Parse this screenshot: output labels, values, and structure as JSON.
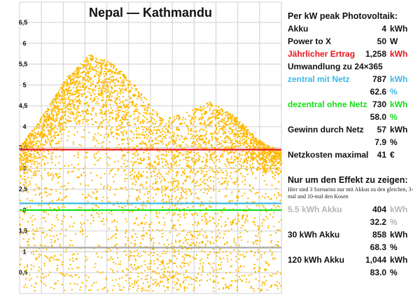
{
  "chart_data": {
    "type": "scatter",
    "title": "Nepal — Kathmandu",
    "xlabel": "",
    "ylabel": "",
    "ylim": [
      0,
      7
    ],
    "y_ticks": [
      "0,5",
      "1",
      "1,5",
      "2",
      "2,5",
      "3",
      "3,5",
      "4",
      "4,5",
      "5",
      "5,5",
      "6",
      "6,5"
    ],
    "y_tick_values": [
      0.5,
      1,
      1.5,
      2,
      2.5,
      3,
      3.5,
      4,
      4.5,
      5,
      5.5,
      6,
      6.5
    ],
    "x_gridlines": 12,
    "grid": true,
    "point_color": "#ffb800",
    "n_points": 5200,
    "envelope_note": "Daily output per kWp across the year; upper envelope (kWh) sampled at 12 equally-spaced positions",
    "upper_envelope": [
      3.5,
      4.3,
      5.2,
      5.75,
      5.5,
      4.9,
      4.2,
      4.35,
      4.6,
      4.3,
      3.7,
      3.4
    ],
    "lower_core": [
      2.6,
      3.0,
      3.6,
      3.9,
      3.5,
      1.8,
      1.2,
      1.4,
      2.1,
      2.6,
      2.9,
      2.9
    ],
    "reference_lines": [
      {
        "name": "Jährlicher Ertrag",
        "y": 3.45,
        "color": "#e8141b"
      },
      {
        "name": "zentral mit Netz",
        "y": 2.16,
        "color": "#3db7e6"
      },
      {
        "name": "dezentral ohne Netz",
        "y": 2.0,
        "color": "#14de14"
      },
      {
        "name": "5.5 kWh Akku",
        "y": 1.1,
        "color": "#a6a6a6"
      }
    ]
  },
  "panel": {
    "heading": "Per kW peak Photovoltaik:",
    "akku": {
      "label": "Akku",
      "value": "4",
      "unit": "kWh"
    },
    "ptx": {
      "label": "Power to X",
      "value": "50",
      "unit": "W"
    },
    "ertrag": {
      "label": "Jährlicher Ertrag",
      "value": "1,258",
      "unit": "kWh"
    },
    "umwandlung": "Umwandlung zu 24×365",
    "zentral": {
      "label": "zentral mit Netz",
      "value": "787",
      "unit": "kWh",
      "pct": "62.6",
      "pct_unit": "%"
    },
    "dezentral": {
      "label": "dezentral ohne Netz",
      "value": "730",
      "unit": "kWh",
      "pct": "58.0",
      "pct_unit": "%"
    },
    "gewinn": {
      "label": "Gewinn durch Netz",
      "value": "57",
      "unit": "kWh",
      "pct": "7.9",
      "pct_unit": "%"
    },
    "netzkosten": {
      "label": "Netzkosten maximal",
      "value": "41",
      "unit": "€"
    },
    "effekt_heading": "Nur um den Effekt zu zeigen:",
    "effekt_note": "Hier sind 3 Szenarios nur mit Akkus zu den gleichen, 3-mal und 10-mal den Kosen",
    "s1": {
      "label": "5.5 kWh Akku",
      "value": "404",
      "unit": "kWh",
      "pct": "32.2",
      "pct_unit": "%"
    },
    "s2": {
      "label": "30 kWh Akku",
      "value": "858",
      "unit": "kWh",
      "pct": "68.3",
      "pct_unit": "%"
    },
    "s3": {
      "label": "120 kWh Akku",
      "value": "1,044",
      "unit": "kWh",
      "pct": "83.0",
      "pct_unit": "%"
    }
  }
}
